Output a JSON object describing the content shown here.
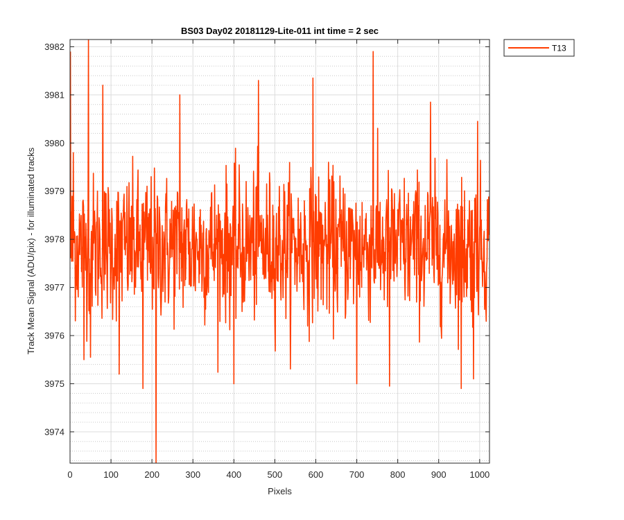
{
  "chart_data": {
    "type": "line",
    "title": "BS03 Day02 20181129-Lite-011 int time = 2 sec",
    "xlabel": "Pixels",
    "ylabel": "Track Mean Signal (ADU/pix) - for illuminated tracks",
    "xlim": [
      0,
      1024
    ],
    "ylim": [
      3973.35,
      3982.15
    ],
    "x_ticks": [
      0,
      100,
      200,
      300,
      400,
      500,
      600,
      700,
      800,
      900,
      1000
    ],
    "y_ticks": [
      3974,
      3975,
      3976,
      3977,
      3978,
      3979,
      3980,
      3981,
      3982
    ],
    "grid": true,
    "minor_grid": true,
    "legend_placement": "outside-top-right",
    "series": [
      {
        "name": "T13",
        "color": "#ff3c00",
        "x_start": 1,
        "x_step": 1,
        "count": 1024,
        "mean": 3977.85,
        "noise_sd": 0.75,
        "spikes": [
          {
            "x": 1,
            "y": 3981.9
          },
          {
            "x": 8,
            "y": 3979.8
          },
          {
            "x": 45,
            "y": 3982.15
          },
          {
            "x": 34,
            "y": 3975.5
          },
          {
            "x": 50,
            "y": 3975.55
          },
          {
            "x": 80,
            "y": 3981.2
          },
          {
            "x": 120,
            "y": 3975.2
          },
          {
            "x": 178,
            "y": 3974.9
          },
          {
            "x": 210,
            "y": 3973.35
          },
          {
            "x": 268,
            "y": 3981.0
          },
          {
            "x": 400,
            "y": 3975.0
          },
          {
            "x": 460,
            "y": 3981.3
          },
          {
            "x": 593,
            "y": 3981.35
          },
          {
            "x": 700,
            "y": 3975.0
          },
          {
            "x": 740,
            "y": 3981.9
          },
          {
            "x": 780,
            "y": 3974.95
          },
          {
            "x": 880,
            "y": 3980.85
          },
          {
            "x": 955,
            "y": 3974.9
          },
          {
            "x": 985,
            "y": 3975.1
          },
          {
            "x": 995,
            "y": 3980.45
          }
        ]
      }
    ]
  }
}
